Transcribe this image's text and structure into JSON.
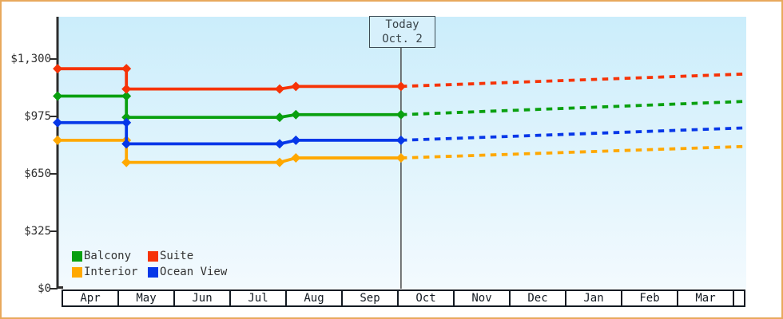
{
  "chart_data": {
    "type": "line",
    "title": "",
    "x_axis": {
      "months": [
        "Apr",
        "May",
        "Jun",
        "Jul",
        "Aug",
        "Sep",
        "Oct",
        "Nov",
        "Dec",
        "Jan",
        "Feb",
        "Mar"
      ]
    },
    "y_axis": {
      "ylim": [
        0,
        1300
      ],
      "ticks": [
        {
          "label": "$1,300",
          "value": 1300
        },
        {
          "label": "$975",
          "value": 975
        },
        {
          "label": "$650",
          "value": 650
        },
        {
          "label": "$325",
          "value": 325
        },
        {
          "label": "$0",
          "value": 0
        }
      ]
    },
    "today": {
      "line1": "Today",
      "line2": "Oct. 2",
      "month_frac": 6.07
    },
    "projection_end_month_frac": 12.21,
    "series": [
      {
        "name": "Balcony",
        "color": "#09a00f",
        "points": [
          {
            "m": -0.07,
            "price": 1090
          },
          {
            "m": 1.16,
            "price": 1090
          },
          {
            "m": 1.16,
            "price": 970
          },
          {
            "m": 3.9,
            "price": 970
          },
          {
            "m": 4.19,
            "price": 985
          },
          {
            "m": 6.07,
            "price": 985
          }
        ],
        "projected_price_end": 1060
      },
      {
        "name": "Suite",
        "color": "#f63307",
        "points": [
          {
            "m": -0.07,
            "price": 1245
          },
          {
            "m": 1.16,
            "price": 1245
          },
          {
            "m": 1.16,
            "price": 1130
          },
          {
            "m": 3.9,
            "price": 1130
          },
          {
            "m": 4.19,
            "price": 1145
          },
          {
            "m": 6.07,
            "price": 1145
          }
        ],
        "projected_price_end": 1215
      },
      {
        "name": "Interior",
        "color": "#ffa800",
        "points": [
          {
            "m": -0.07,
            "price": 840
          },
          {
            "m": 1.16,
            "price": 840
          },
          {
            "m": 1.16,
            "price": 715
          },
          {
            "m": 3.9,
            "price": 715
          },
          {
            "m": 4.19,
            "price": 740
          },
          {
            "m": 6.07,
            "price": 740
          }
        ],
        "projected_price_end": 805
      },
      {
        "name": "Ocean View",
        "color": "#0637e8",
        "points": [
          {
            "m": -0.07,
            "price": 940
          },
          {
            "m": 1.16,
            "price": 940
          },
          {
            "m": 1.16,
            "price": 820
          },
          {
            "m": 3.9,
            "price": 820
          },
          {
            "m": 4.19,
            "price": 840
          },
          {
            "m": 6.07,
            "price": 840
          }
        ],
        "projected_price_end": 910
      }
    ],
    "legend": {
      "order": [
        "Balcony",
        "Suite",
        "Interior",
        "Ocean View"
      ]
    }
  }
}
